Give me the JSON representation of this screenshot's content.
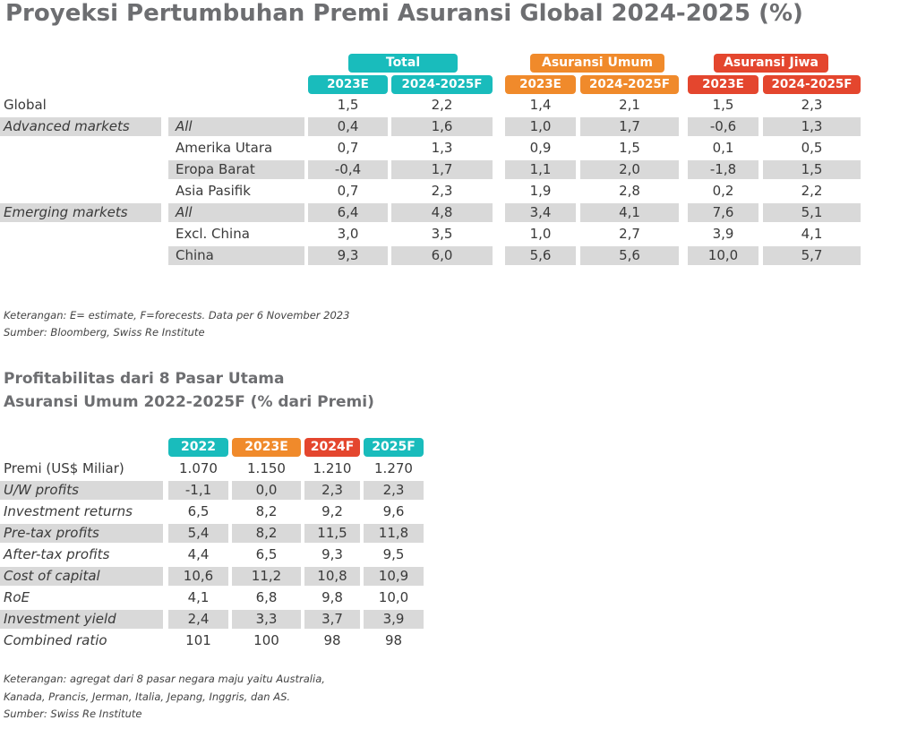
{
  "title": "Proyeksi Pertumbuhan Premi Asuransi Global 2024-2025 (%)",
  "table1": {
    "groups": [
      "Total",
      "Asuransi Umum",
      "Asuransi Jiwa"
    ],
    "subheaders": [
      "2023E",
      "2024-2025F",
      "2023E",
      "2024-2025F",
      "2023E",
      "2024-2025F"
    ],
    "rows": [
      {
        "label": "Global",
        "sub": "",
        "values": [
          "1,5",
          "2,2",
          "1,4",
          "2,1",
          "1,5",
          "2,3"
        ]
      },
      {
        "label": "Advanced markets",
        "sub": "All",
        "values": [
          "0,4",
          "1,6",
          "1,0",
          "1,7",
          "-0,6",
          "1,3"
        ]
      },
      {
        "label": "",
        "sub": "Amerika Utara",
        "values": [
          "0,7",
          "1,3",
          "0,9",
          "1,5",
          "0,1",
          "0,5"
        ]
      },
      {
        "label": "",
        "sub": "Eropa Barat",
        "values": [
          "-0,4",
          "1,7",
          "1,1",
          "2,0",
          "-1,8",
          "1,5"
        ]
      },
      {
        "label": "",
        "sub": "Asia Pasifik",
        "values": [
          "0,7",
          "2,3",
          "1,9",
          "2,8",
          "0,2",
          "2,2"
        ]
      },
      {
        "label": "Emerging markets",
        "sub": "All",
        "values": [
          "6,4",
          "4,8",
          "3,4",
          "4,1",
          "7,6",
          "5,1"
        ]
      },
      {
        "label": "",
        "sub": "Excl. China",
        "values": [
          "3,0",
          "3,5",
          "1,0",
          "2,7",
          "3,9",
          "4,1"
        ]
      },
      {
        "label": "",
        "sub": "China",
        "values": [
          "9,3",
          "6,0",
          "5,6",
          "5,6",
          "10,0",
          "5,7"
        ]
      }
    ],
    "note1": "Keterangan: E= estimate, F=forecests. Data per 6 November 2023",
    "note2": "Sumber: Bloomberg, Swiss Re Institute"
  },
  "subtitle_line1": "Profitabilitas dari 8 Pasar Utama",
  "subtitle_line2": "Asuransi Umum 2022-2025F (% dari Premi)",
  "table2": {
    "headers": [
      "2022",
      "2023E",
      "2024F",
      "2025F"
    ],
    "rows": [
      {
        "label": "Premi (US$ Miliar)",
        "values": [
          "1.070",
          "1.150",
          "1.210",
          "1.270"
        ]
      },
      {
        "label": "U/W profits",
        "values": [
          "-1,1",
          "0,0",
          "2,3",
          "2,3"
        ]
      },
      {
        "label": "Investment returns",
        "values": [
          "6,5",
          "8,2",
          "9,2",
          "9,6"
        ]
      },
      {
        "label": "Pre-tax profits",
        "values": [
          "5,4",
          "8,2",
          "11,5",
          "11,8"
        ]
      },
      {
        "label": "After-tax profits",
        "values": [
          "4,4",
          "6,5",
          "9,3",
          "9,5"
        ]
      },
      {
        "label": "Cost of capital",
        "values": [
          "10,6",
          "11,2",
          "10,8",
          "10,9"
        ]
      },
      {
        "label": "RoE",
        "values": [
          "4,1",
          "6,8",
          "9,8",
          "10,0"
        ]
      },
      {
        "label": "Investment yield",
        "values": [
          "2,4",
          "3,3",
          "3,7",
          "3,9"
        ]
      },
      {
        "label": "Combined ratio",
        "values": [
          "101",
          "100",
          "98",
          "98"
        ]
      }
    ],
    "note1": "Keterangan: agregat dari 8 pasar negara maju yaitu Australia,",
    "note2": "Kanada, Prancis, Jerman, Italia, Jepang, Inggris, dan AS.",
    "note3": "Sumber: Swiss Re Institute"
  },
  "colors": {
    "teal": "#19bcbc",
    "orange": "#f08a2b",
    "red": "#e4462e",
    "shade": "#d9d9d9",
    "heading": "#6d6e71"
  }
}
